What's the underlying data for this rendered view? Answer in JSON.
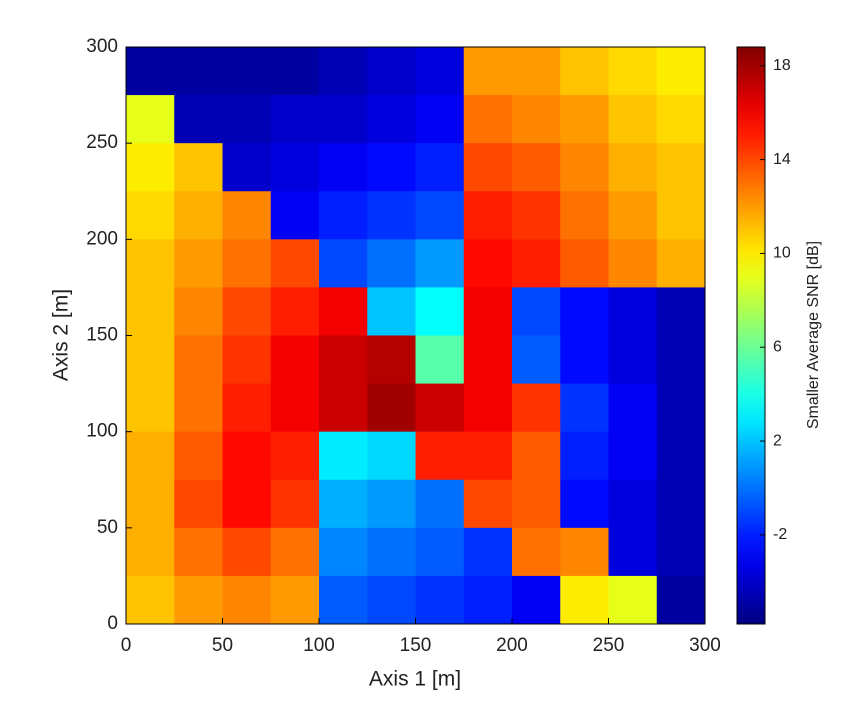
{
  "chart_data": {
    "type": "heatmap",
    "colormap": "jet",
    "x_label": "Axis 1 [m]",
    "y_label": "Axis 2 [m]",
    "colorbar_label": "Smaller Average SNR [dB]",
    "xlim": [
      0,
      300
    ],
    "ylim": [
      0,
      300
    ],
    "xticks": [
      0,
      50,
      100,
      150,
      200,
      250,
      300
    ],
    "yticks": [
      0,
      50,
      100,
      150,
      200,
      250,
      300
    ],
    "clim": [
      -5.8,
      18.8
    ],
    "cticks": [
      -2,
      2,
      6,
      10,
      14,
      18
    ],
    "x": [
      12.5,
      37.5,
      62.5,
      87.5,
      112.5,
      137.5,
      162.5,
      187.5,
      212.5,
      237.5,
      262.5,
      287.5
    ],
    "y": [
      287.5,
      262.5,
      237.5,
      212.5,
      187.5,
      162.5,
      137.5,
      112.5,
      87.5,
      62.5,
      37.5,
      12.5
    ],
    "z": [
      [
        -5,
        -5,
        -5,
        -5,
        -4.5,
        -4,
        -3.5,
        12,
        12,
        11,
        10.5,
        10
      ],
      [
        9,
        -4.5,
        -4.5,
        -4,
        -4,
        -3.5,
        -3,
        13,
        12.5,
        12,
        11,
        10.5
      ],
      [
        10,
        11,
        -4,
        -3.5,
        -3,
        -2.5,
        -2,
        14,
        13.5,
        12.5,
        11.5,
        11
      ],
      [
        10.5,
        11.5,
        12.5,
        -3,
        -2,
        -1.5,
        -1,
        15,
        14.5,
        13,
        12,
        11
      ],
      [
        11,
        12,
        13,
        14,
        -1,
        0,
        1,
        15.5,
        15,
        13.5,
        12.5,
        11.5
      ],
      [
        11,
        12.5,
        14,
        15,
        16,
        2,
        3.5,
        16,
        -1,
        -2.5,
        -3.5,
        -4.5
      ],
      [
        11,
        13,
        14.5,
        16,
        17,
        17.5,
        5.5,
        16,
        -0.5,
        -2.5,
        -3.5,
        -4.5
      ],
      [
        11,
        13,
        15,
        16,
        17,
        18,
        17,
        16,
        14.5,
        -1.5,
        -3,
        -4.5
      ],
      [
        11.5,
        13.5,
        15.5,
        15,
        3,
        2.5,
        15,
        15,
        13.5,
        -2,
        -3,
        -4.5
      ],
      [
        11.5,
        14,
        15.5,
        14.5,
        1.5,
        1,
        0,
        14,
        13.5,
        -2.5,
        -3.5,
        -4.5
      ],
      [
        11.5,
        13,
        14,
        13,
        0.5,
        0,
        -0.5,
        -1.5,
        13,
        12.5,
        -3.5,
        -4.5
      ],
      [
        11,
        12,
        12.5,
        12,
        -0.5,
        -1,
        -1.5,
        -2,
        -3,
        10,
        9,
        -5
      ]
    ]
  }
}
